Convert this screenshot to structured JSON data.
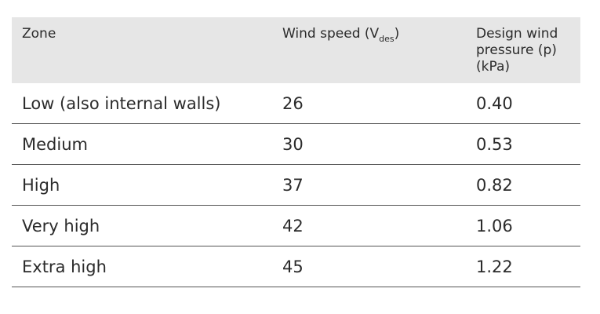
{
  "table": {
    "headers": {
      "zone": "Zone",
      "wind_speed_prefix": "Wind speed (V",
      "wind_speed_sub": "des",
      "wind_speed_suffix": ")",
      "pressure": "Design wind pressure (p) (kPa)"
    },
    "rows": [
      {
        "zone": "Low (also internal walls)",
        "speed": "26",
        "pressure": "0.40"
      },
      {
        "zone": "Medium",
        "speed": "30",
        "pressure": "0.53"
      },
      {
        "zone": "High",
        "speed": "37",
        "pressure": "0.82"
      },
      {
        "zone": "Very high",
        "speed": "42",
        "pressure": "1.06"
      },
      {
        "zone": "Extra high",
        "speed": "45",
        "pressure": "1.22"
      }
    ]
  }
}
